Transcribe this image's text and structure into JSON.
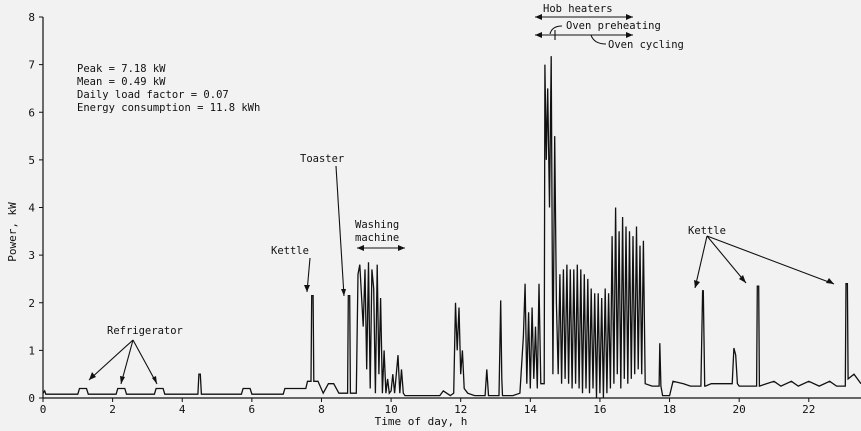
{
  "chart_data": {
    "type": "line",
    "title": "",
    "xlabel": "Time of day, h",
    "ylabel": "Power, kW",
    "xlim": [
      0,
      23.5
    ],
    "ylim": [
      0,
      8
    ],
    "xticks": [
      0,
      2,
      4,
      6,
      8,
      10,
      12,
      14,
      16,
      18,
      20,
      22
    ],
    "yticks": [
      0,
      1,
      2,
      3,
      4,
      5,
      6,
      7,
      8
    ],
    "grid": false,
    "stats": [
      "Peak = 7.18 kW",
      "Mean = 0.49 kW",
      "Daily load factor = 0.07",
      "Energy consumption = 11.8 kWh"
    ],
    "annotations": {
      "refrigerator": "Refrigerator",
      "kettle_morning": "Kettle",
      "toaster": "Toaster",
      "washing_line1": "Washing",
      "washing_line2": "machine",
      "hob": "Hob heaters",
      "oven_preheat": "Oven preheating",
      "oven_cycle": "Oven cycling",
      "kettle_evening": "Kettle"
    },
    "series": [
      {
        "x": [
          0,
          0.05,
          0.08,
          1.0,
          1.05,
          1.25,
          1.3,
          2.1,
          2.15,
          2.35,
          2.4,
          3.2,
          3.25,
          3.45,
          3.5,
          4.45,
          4.48,
          4.52,
          4.55,
          5.7,
          5.75,
          5.95,
          6.0,
          6.9,
          6.95,
          7.55,
          7.6,
          7.7,
          7.72,
          7.76,
          7.78,
          7.9,
          8.05,
          8.2,
          8.35,
          8.5,
          8.75,
          8.77,
          8.81,
          8.83,
          9.0,
          9.05,
          9.1,
          9.2,
          9.25,
          9.3,
          9.35,
          9.4,
          9.45,
          9.5,
          9.55,
          9.6,
          9.65,
          9.7,
          9.75,
          9.8,
          9.85,
          9.9,
          9.95,
          10.0,
          10.05,
          10.1,
          10.2,
          10.25,
          10.3,
          10.35,
          10.4,
          10.45,
          10.5,
          10.6,
          11.4,
          11.5,
          11.7,
          11.8,
          11.85,
          11.9,
          11.95,
          12.0,
          12.05,
          12.1,
          12.2,
          12.4,
          12.7,
          12.75,
          12.8,
          12.85,
          13.1,
          13.15,
          13.18,
          13.2,
          13.5,
          13.7,
          13.8,
          13.85,
          13.9,
          13.95,
          14.0,
          14.05,
          14.1,
          14.15,
          14.2,
          14.25,
          14.3,
          14.4,
          14.42,
          14.46,
          14.5,
          14.55,
          14.6,
          14.65,
          14.7,
          14.75,
          14.8,
          14.85,
          14.9,
          14.95,
          15.0,
          15.05,
          15.1,
          15.15,
          15.2,
          15.25,
          15.3,
          15.35,
          15.4,
          15.45,
          15.5,
          15.55,
          15.6,
          15.65,
          15.7,
          15.75,
          15.8,
          15.85,
          15.9,
          15.95,
          16.0,
          16.05,
          16.1,
          16.15,
          16.2,
          16.25,
          16.3,
          16.35,
          16.4,
          16.45,
          16.5,
          16.55,
          16.6,
          16.65,
          16.7,
          16.75,
          16.8,
          16.85,
          16.9,
          16.95,
          17.0,
          17.05,
          17.1,
          17.15,
          17.2,
          17.25,
          17.3,
          17.5,
          17.7,
          17.72,
          17.75,
          17.8,
          18.0,
          18.1,
          18.4,
          18.6,
          18.9,
          18.95,
          18.97,
          19.01,
          19.03,
          19.2,
          19.8,
          19.85,
          19.9,
          19.95,
          20.0,
          20.5,
          20.52,
          20.56,
          20.58,
          21.0,
          21.2,
          21.5,
          21.7,
          22.0,
          22.3,
          22.6,
          22.8,
          23.05,
          23.07,
          23.11,
          23.13,
          23.3,
          23.5
        ],
        "y": [
          0.1,
          0.15,
          0.08,
          0.08,
          0.2,
          0.2,
          0.08,
          0.08,
          0.2,
          0.2,
          0.08,
          0.08,
          0.2,
          0.2,
          0.08,
          0.08,
          0.5,
          0.5,
          0.08,
          0.08,
          0.2,
          0.2,
          0.08,
          0.08,
          0.2,
          0.2,
          0.35,
          0.35,
          2.15,
          2.15,
          0.35,
          0.35,
          0.1,
          0.3,
          0.3,
          0.1,
          0.1,
          2.15,
          2.15,
          0.1,
          0.1,
          2.6,
          2.8,
          1.5,
          2.7,
          0.6,
          2.85,
          0.2,
          2.7,
          2.3,
          0.1,
          2.8,
          0.5,
          2.1,
          0.1,
          1.0,
          0.1,
          0.4,
          0.1,
          0.15,
          0.5,
          0.1,
          0.9,
          0.1,
          0.6,
          0.1,
          0.05,
          0.05,
          0.05,
          0.05,
          0.05,
          0.15,
          0.05,
          0.1,
          2.0,
          1.0,
          1.9,
          0.5,
          1.0,
          0.2,
          0.1,
          0.05,
          0.05,
          0.6,
          0.05,
          0.05,
          0.05,
          2.05,
          0.4,
          0.05,
          0.05,
          0.1,
          1.3,
          2.4,
          0.3,
          1.8,
          0.2,
          1.9,
          0.4,
          1.5,
          0.2,
          2.4,
          0.3,
          0.3,
          7.0,
          5.0,
          6.5,
          4.0,
          7.18,
          0.5,
          5.5,
          2.0,
          0.5,
          2.6,
          0.3,
          2.7,
          0.4,
          2.8,
          0.3,
          2.7,
          0.2,
          2.7,
          0.3,
          2.8,
          0.2,
          2.7,
          0.1,
          2.6,
          0.2,
          2.5,
          0.1,
          2.3,
          0.2,
          2.2,
          0.0,
          2.2,
          0.1,
          2.1,
          0.0,
          2.3,
          0.1,
          2.2,
          0.2,
          3.4,
          0.3,
          4.0,
          0.5,
          3.5,
          0.2,
          3.8,
          0.4,
          3.6,
          0.3,
          3.5,
          0.4,
          3.4,
          0.5,
          3.6,
          0.6,
          3.2,
          0.5,
          3.3,
          0.3,
          0.25,
          0.25,
          1.15,
          0.25,
          0.05,
          0.05,
          0.35,
          0.3,
          0.25,
          0.25,
          2.25,
          2.25,
          0.25,
          0.25,
          0.3,
          0.3,
          1.05,
          0.9,
          0.3,
          0.25,
          0.25,
          2.35,
          2.35,
          0.25,
          0.35,
          0.25,
          0.35,
          0.25,
          0.35,
          0.25,
          0.35,
          0.25,
          0.25,
          2.4,
          2.4,
          0.4,
          0.5,
          0.3
        ]
      }
    ]
  }
}
